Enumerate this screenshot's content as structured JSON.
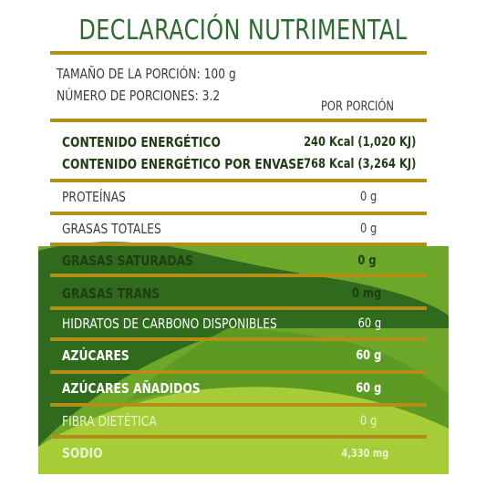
{
  "title": "DECLARACIÓN NUTRIMENTAL",
  "serving": {
    "size": "TAMAÑO DE LA PORCIÓN: 100 g",
    "count": "NÚMERO DE PORCIONES: 3.2"
  },
  "per_portion_header": "POR PORCIÓN",
  "energy": [
    {
      "label": "CONTENIDO ENERGÉTICO",
      "value": "240 Kcal (1,020 KJ)"
    },
    {
      "label": "CONTENIDO ENERGÉTICO POR ENVASE",
      "value": "768 Kcal (3,264 KJ)"
    }
  ],
  "nutrients": [
    {
      "label": "PROTEÍNAS",
      "value": "0 g"
    },
    {
      "label": "GRASAS TOTALES",
      "value": "0 g"
    },
    {
      "label": "GRASAS SATURADAS",
      "value": "0 g"
    },
    {
      "label": "GRASAS TRANS",
      "value": "0 mg"
    },
    {
      "label": "HIDRATOS DE CARBONO DISPONIBLES",
      "value": "60 g"
    },
    {
      "label": "AZÚCARES",
      "value": "60 g"
    },
    {
      "label": "AZÚCARES AÑADIDOS",
      "value": "60 g"
    },
    {
      "label": "FIBRA DIETÉTICA",
      "value": "0 g"
    },
    {
      "label": "SODIO",
      "value": "4,330 mg"
    }
  ],
  "colors": {
    "rule": "#b38f17",
    "title": "#2d6a2f",
    "green_dark": "#2f6a1d",
    "green_mid": "#5d9a24",
    "green_light": "#a6cc38"
  }
}
